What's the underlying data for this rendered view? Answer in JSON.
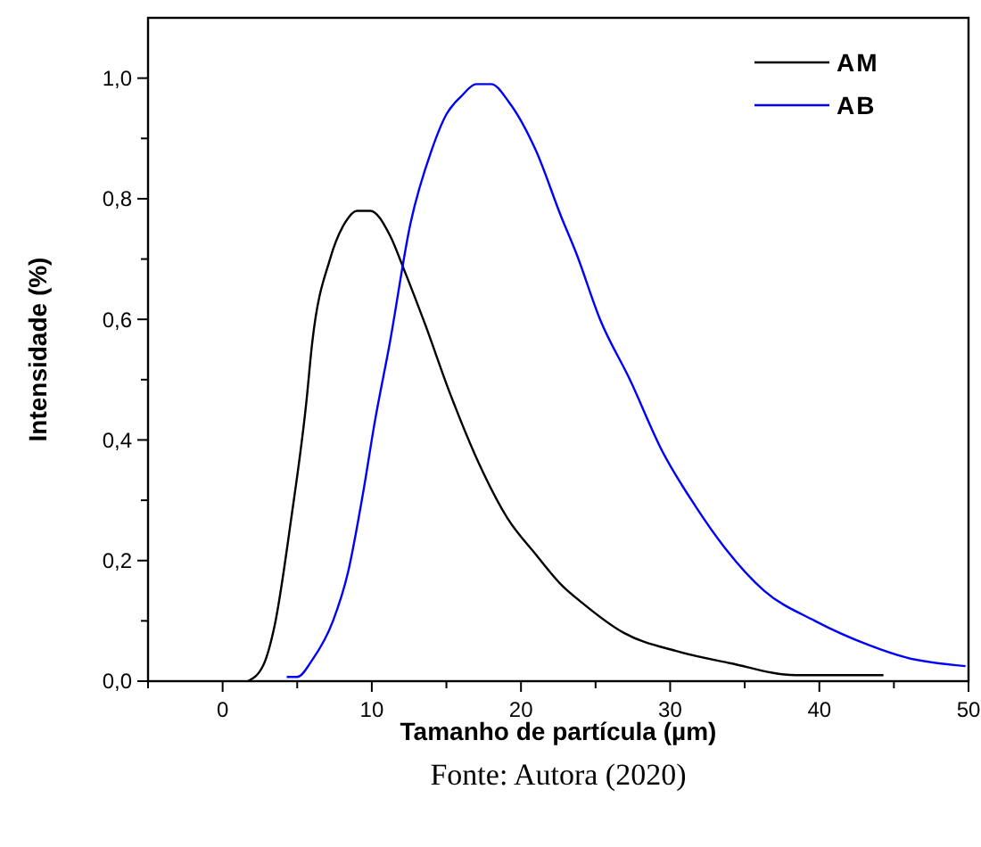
{
  "chart_data": {
    "type": "line",
    "xlabel": "Tamanho de partícula (µm)",
    "ylabel": "Intensidade (%)",
    "annotations": [
      "Fonte: Autora (2020)"
    ],
    "legend": "top right",
    "grid": false,
    "marker": "none",
    "line_style": "solid",
    "xlim": [
      -5,
      50
    ],
    "xticks": [
      {
        "value": -5,
        "label": null
      },
      {
        "value": 0,
        "label": "0"
      },
      {
        "value": 5,
        "label": null
      },
      {
        "value": 10,
        "label": "10"
      },
      {
        "value": 15,
        "label": null
      },
      {
        "value": 20,
        "label": "20"
      },
      {
        "value": 25,
        "label": null
      },
      {
        "value": 30,
        "label": "30"
      },
      {
        "value": 35,
        "label": null
      },
      {
        "value": 40,
        "label": "40"
      },
      {
        "value": 45,
        "label": null
      },
      {
        "value": 50,
        "label": "50"
      }
    ],
    "ylim": [
      0,
      1.1
    ],
    "yticks": [
      {
        "value": 0,
        "label": "0,0"
      },
      {
        "value": 0.1,
        "label": null
      },
      {
        "value": 0.2,
        "label": "0,2"
      },
      {
        "value": 0.3,
        "label": null
      },
      {
        "value": 0.4,
        "label": "0,4"
      },
      {
        "value": 0.5,
        "label": null
      },
      {
        "value": 0.6,
        "label": "0,6"
      },
      {
        "value": 0.7,
        "label": null
      },
      {
        "value": 0.8,
        "label": "0,8"
      },
      {
        "value": 0.9,
        "label": null
      },
      {
        "value": 1,
        "label": "1,0"
      }
    ],
    "series": [
      {
        "name": "AM",
        "color": "#000000",
        "x": [
          1.7,
          2.7,
          3.5,
          4.6,
          5.6,
          6.0,
          7.2,
          8.2,
          9.0,
          9.9,
          11.2,
          12.2,
          13.6,
          15.2,
          17.2,
          19.1,
          21.0,
          22.7,
          24.1,
          26.9,
          30.4,
          34.0,
          38.4,
          44.3
        ],
        "values": [
          0,
          0.025,
          0.094,
          0.27,
          0.46,
          0.56,
          0.7,
          0.76,
          0.78,
          0.78,
          0.74,
          0.68,
          0.59,
          0.48,
          0.36,
          0.27,
          0.21,
          0.16,
          0.13,
          0.08,
          0.05,
          0.03,
          0.01,
          0.01
        ]
      },
      {
        "name": "AB",
        "color": "#0000ff",
        "x": [
          4.3,
          5.0,
          6.0,
          7.4,
          8.4,
          9.4,
          10.2,
          11.2,
          12.6,
          14.0,
          15.0,
          16.0,
          17.0,
          18.0,
          19.2,
          21.0,
          22.7,
          23.7,
          25.3,
          27.3,
          29.5,
          31.7,
          33.7,
          36.3,
          39.7,
          43.3,
          45.7,
          49.8
        ],
        "values": [
          0.007,
          0.007,
          0.035,
          0.1,
          0.18,
          0.31,
          0.43,
          0.56,
          0.76,
          0.88,
          0.94,
          0.97,
          0.99,
          0.99,
          0.96,
          0.88,
          0.77,
          0.71,
          0.6,
          0.5,
          0.38,
          0.29,
          0.22,
          0.15,
          0.1,
          0.06,
          0.04,
          0.025
        ]
      }
    ]
  }
}
